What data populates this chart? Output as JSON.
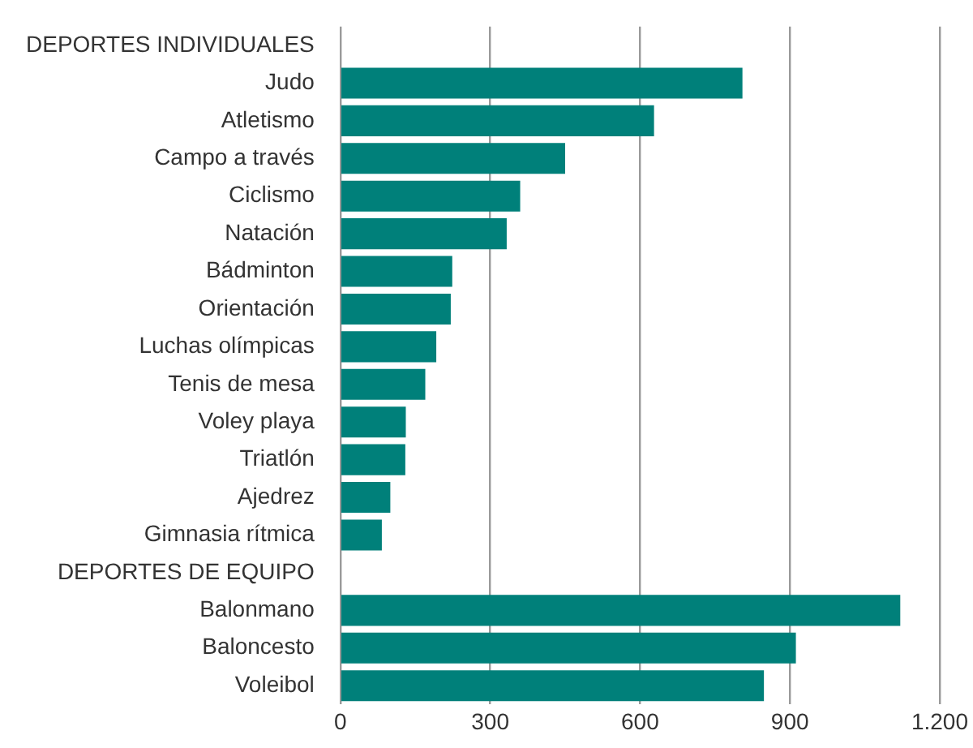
{
  "chart_data": {
    "type": "bar",
    "orientation": "horizontal",
    "categories": [
      "DEPORTES INDIVIDUALES",
      "Judo",
      "Atletismo",
      "Campo a través",
      "Ciclismo",
      "Natación",
      "Bádminton",
      "Orientación",
      "Luchas olímpicas",
      "Tenis de mesa",
      "Voley playa",
      "Triatlón",
      "Ajedrez",
      "Gimnasia rítmica",
      "DEPORTES DE EQUIPO",
      "Balonmano",
      "Baloncesto",
      "Voleibol"
    ],
    "values": [
      null,
      805,
      628,
      450,
      360,
      333,
      224,
      221,
      192,
      170,
      131,
      130,
      100,
      83,
      null,
      1121,
      912,
      848
    ],
    "color": "#00807a",
    "xlim": [
      0,
      1200
    ],
    "xticks": [
      0,
      300,
      600,
      900,
      {
        "value": 1200,
        "label": "1.200"
      }
    ],
    "grid": "x"
  }
}
